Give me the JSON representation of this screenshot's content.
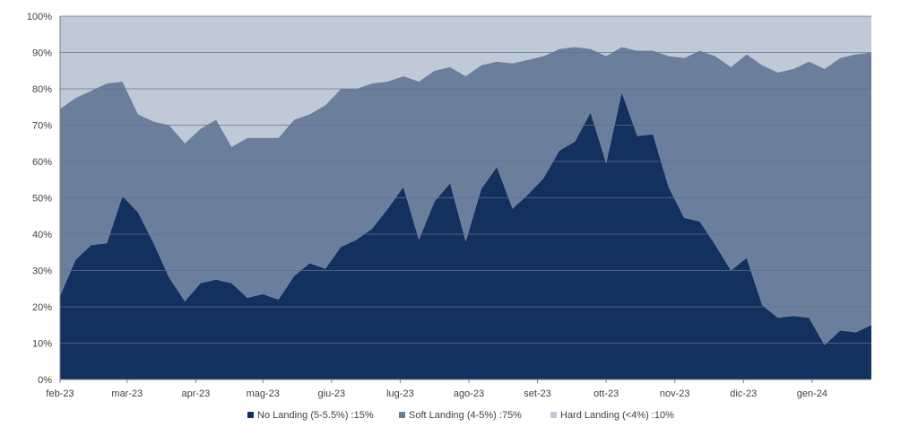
{
  "chart_data": {
    "type": "area",
    "stacked": true,
    "title": "",
    "xlabel": "",
    "ylabel": "",
    "ylim": [
      0,
      100
    ],
    "y_ticks": [
      "0%",
      "10%",
      "20%",
      "30%",
      "40%",
      "50%",
      "60%",
      "70%",
      "80%",
      "90%",
      "100%"
    ],
    "x_ticks": [
      {
        "label": "feb-23",
        "index": 0
      },
      {
        "label": "mar-23",
        "index": 4.3
      },
      {
        "label": "apr-23",
        "index": 8.7
      },
      {
        "label": "mag-23",
        "index": 13.0
      },
      {
        "label": "giu-23",
        "index": 17.4
      },
      {
        "label": "lug-23",
        "index": 21.8
      },
      {
        "label": "ago-23",
        "index": 26.2
      },
      {
        "label": "set-23",
        "index": 30.6
      },
      {
        "label": "ott-23",
        "index": 35.0
      },
      {
        "label": "nov-23",
        "index": 39.4
      },
      {
        "label": "dic-23",
        "index": 43.8
      },
      {
        "label": "gen-24",
        "index": 48.2
      }
    ],
    "grid": true,
    "legend_position": "bottom",
    "series": [
      {
        "name": "No Landing (5-5.5%) :15%",
        "color": "#13315f",
        "values": [
          23,
          33,
          37,
          37.5,
          50.5,
          46,
          37.5,
          28,
          21.5,
          26.5,
          27.5,
          26.5,
          22.5,
          23.5,
          22,
          28.5,
          32,
          30.5,
          36.5,
          38.5,
          41.5,
          47,
          53,
          38.5,
          49,
          54,
          38,
          52.5,
          58.5,
          47,
          51,
          55.5,
          63,
          65.5,
          73.5,
          59.5,
          79,
          67,
          67.5,
          53,
          44.5,
          43.5,
          37,
          30,
          33.5,
          20.5,
          17,
          17.5,
          17,
          9.5,
          13.5,
          13,
          15
        ]
      },
      {
        "name": "Soft Landing (4-5%) :75%",
        "color": "#6b7f9d",
        "values": [
          51.5,
          44.5,
          42.5,
          44,
          31.5,
          27,
          33.5,
          42,
          43.5,
          42.5,
          44,
          37.5,
          44,
          43,
          44.5,
          43,
          41,
          45,
          43.5,
          41.5,
          40,
          35,
          30.5,
          43.5,
          36,
          32,
          45.5,
          34,
          29,
          40,
          37,
          33.5,
          28,
          26,
          17.5,
          29.5,
          12.5,
          23.5,
          23,
          36,
          44,
          47,
          52,
          56,
          56,
          66,
          67.5,
          68,
          70.5,
          76,
          75,
          76.5,
          75
        ]
      },
      {
        "name": "Hard Landing (<4%) :10%",
        "color": "#c0c9d6",
        "values": [
          25.5,
          22.5,
          20.5,
          18.5,
          18,
          27,
          29,
          30,
          35,
          31,
          28.5,
          36,
          33.5,
          33.5,
          33.5,
          28.5,
          27,
          24.5,
          20,
          20,
          18.5,
          18,
          16.5,
          18,
          15,
          14,
          16.5,
          13.5,
          12.5,
          13,
          12,
          11,
          9,
          8.5,
          9,
          11,
          8.5,
          9.5,
          9.5,
          11,
          11.5,
          9.5,
          11,
          14,
          10.5,
          13.5,
          15.5,
          14.5,
          12.5,
          14.5,
          11.5,
          10.5,
          10
        ]
      }
    ]
  }
}
